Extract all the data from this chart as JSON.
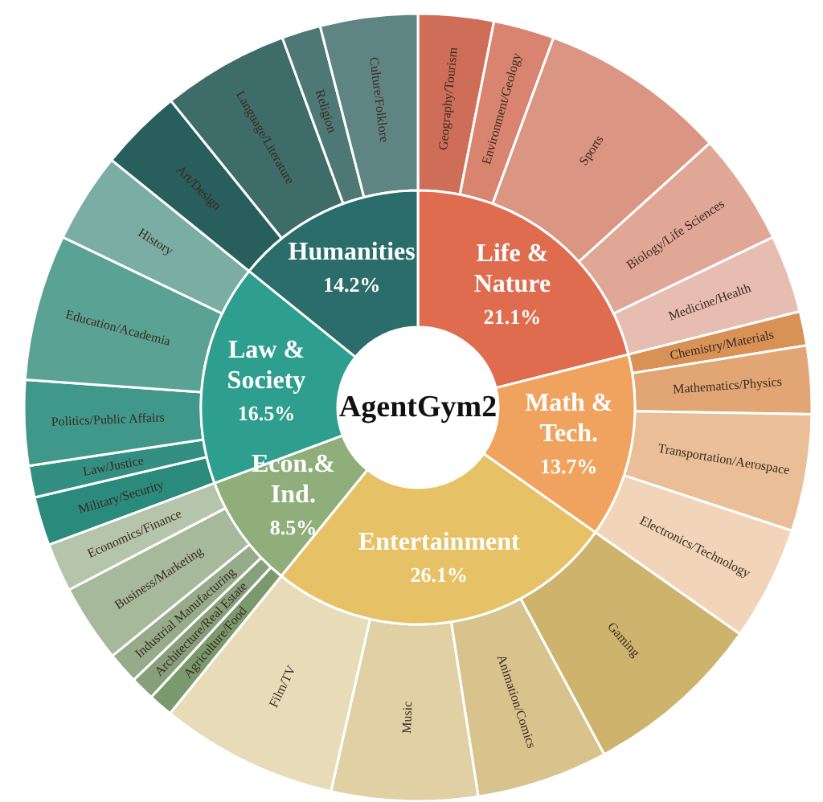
{
  "chart_data": [
    {
      "type": "donut",
      "title": "AgentGym2",
      "legend": false,
      "categories": [
        "Life &\nNature",
        "Math &\nTech.",
        "Entertainment",
        "Econ.&\nInd.",
        "Law &\nSociety",
        "Humanities"
      ],
      "values": [
        21.1,
        13.7,
        26.1,
        8.5,
        16.5,
        14.2
      ],
      "colors": [
        "#e06c4f",
        "#f0a35e",
        "#e6c165",
        "#8fae7a",
        "#2e9e8e",
        "#2a6d6a"
      ],
      "value_labels": [
        "21.1%",
        "13.7%",
        "26.1%",
        "8.5%",
        "16.5%",
        "14.2%"
      ]
    },
    {
      "type": "donut",
      "legend": false,
      "categories": [
        "Geography/Tourism",
        "Environment/Geology",
        "Sports",
        "Biology/Life Sciences",
        "Medicine/Health",
        "Chemistry/Materials",
        "Mathematics/Physics",
        "Transportation/Aerospace",
        "Electronics/Technology",
        "Gaming",
        "Animation/Comics",
        "Music",
        "Film/TV",
        "Agriculture/Food",
        "Architecture/Real Estate",
        "Industrial Manufacturing",
        "Business/Marketing",
        "Economics/Finance",
        "Military/Security",
        "Law/Justice",
        "Politics/Public Affairs",
        "Education/Academia",
        "History",
        "Art/Design",
        "Language/Literature",
        "Religion",
        "Culture/Folklore"
      ],
      "values": [
        3.1,
        2.5,
        7.7,
        4.6,
        3.2,
        1.4,
        2.8,
        4.8,
        4.7,
        7.4,
        5.4,
        6.0,
        7.3,
        1.0,
        1.0,
        1.3,
        3.2,
        2.0,
        2.0,
        1.3,
        3.5,
        6.0,
        3.7,
        3.4,
        5.2,
        1.6,
        4.0
      ],
      "colors": [
        "#cf6e58",
        "#d88470",
        "#db9683",
        "#e0a696",
        "#e8bdb1",
        "#d99256",
        "#e2a674",
        "#eabf98",
        "#f2d4b8",
        "#cdb36c",
        "#d8c38d",
        "#e0d0a4",
        "#e7dbb8",
        "#7a9a6e",
        "#879f7b",
        "#95ab8a",
        "#a6b99b",
        "#b5c5ab",
        "#2a8a7c",
        "#338f82",
        "#3f988a",
        "#5aa294",
        "#7aaea4",
        "#285e5c",
        "#3d6c69",
        "#4e7875",
        "#5f8582"
      ]
    }
  ]
}
